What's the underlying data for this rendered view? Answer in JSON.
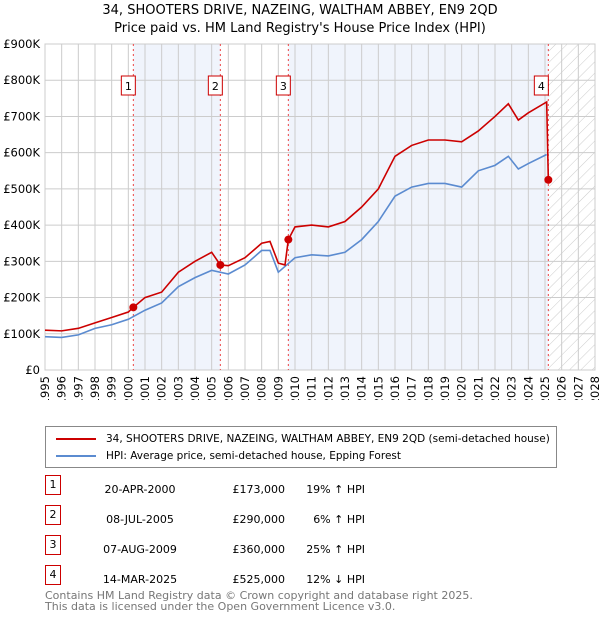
{
  "title": [
    "34, SHOOTERS DRIVE, NAZEING, WALTHAM ABBEY, EN9 2QD",
    "Price paid vs. HM Land Registry's House Price Index (HPI)"
  ],
  "chart_data": {
    "type": "line",
    "xlim": [
      1995,
      2028
    ],
    "ylim": [
      0,
      900000
    ],
    "yticks": [
      {
        "v": 0,
        "label": "£0"
      },
      {
        "v": 100000,
        "label": "£100K"
      },
      {
        "v": 200000,
        "label": "£200K"
      },
      {
        "v": 300000,
        "label": "£300K"
      },
      {
        "v": 400000,
        "label": "£400K"
      },
      {
        "v": 500000,
        "label": "£500K"
      },
      {
        "v": 600000,
        "label": "£600K"
      },
      {
        "v": 700000,
        "label": "£700K"
      },
      {
        "v": 800000,
        "label": "£800K"
      },
      {
        "v": 900000,
        "label": "£900K"
      }
    ],
    "xticks": [
      1995,
      1996,
      1997,
      1998,
      1999,
      2000,
      2001,
      2002,
      2003,
      2004,
      2005,
      2006,
      2007,
      2008,
      2009,
      2010,
      2011,
      2012,
      2013,
      2014,
      2015,
      2016,
      2017,
      2018,
      2019,
      2020,
      2021,
      2022,
      2023,
      2024,
      2025,
      2026,
      2027,
      2028
    ],
    "series": [
      {
        "name": "34, SHOOTERS DRIVE, NAZEING, WALTHAM ABBEY, EN9 2QD (semi-detached house)",
        "color": "#cc0000",
        "x": [
          1995,
          1996,
          1997,
          1998,
          1999,
          2000,
          2000.3,
          2001,
          2002,
          2003,
          2004,
          2005,
          2005.52,
          2006,
          2007,
          2008,
          2008.5,
          2009,
          2009.4,
          2009.6,
          2010,
          2011,
          2012,
          2013,
          2014,
          2015,
          2016,
          2017,
          2018,
          2019,
          2020,
          2021,
          2022,
          2022.8,
          2023.4,
          2024,
          2025.1,
          2025.2
        ],
        "y": [
          110000,
          108000,
          115000,
          130000,
          145000,
          160000,
          173000,
          200000,
          215000,
          270000,
          300000,
          325000,
          290000,
          288000,
          310000,
          350000,
          355000,
          295000,
          290000,
          360000,
          395000,
          400000,
          395000,
          410000,
          450000,
          500000,
          590000,
          620000,
          635000,
          635000,
          630000,
          660000,
          700000,
          735000,
          690000,
          710000,
          740000,
          525000
        ]
      },
      {
        "name": "HPI: Average price, semi-detached house, Epping Forest",
        "color": "#5b8bd0",
        "x": [
          1995,
          1996,
          1997,
          1998,
          1999,
          2000,
          2001,
          2002,
          2003,
          2004,
          2005,
          2006,
          2007,
          2008,
          2008.5,
          2009,
          2010,
          2011,
          2012,
          2013,
          2014,
          2015,
          2016,
          2017,
          2018,
          2019,
          2020,
          2021,
          2022,
          2022.8,
          2023.4,
          2024,
          2025.1
        ],
        "y": [
          92000,
          90000,
          97000,
          115000,
          125000,
          140000,
          165000,
          185000,
          230000,
          255000,
          275000,
          265000,
          290000,
          330000,
          330000,
          270000,
          310000,
          318000,
          315000,
          325000,
          360000,
          410000,
          480000,
          505000,
          515000,
          515000,
          505000,
          550000,
          565000,
          590000,
          555000,
          570000,
          595000
        ]
      }
    ],
    "sales": [
      {
        "id": "1",
        "x": 2000.3,
        "price": 173000,
        "date": "20-APR-2000",
        "price_label": "£173,000",
        "hpi": "19% ↑ HPI"
      },
      {
        "id": "2",
        "x": 2005.52,
        "price": 290000,
        "date": "08-JUL-2005",
        "price_label": "£290,000",
        "hpi": "6% ↑ HPI"
      },
      {
        "id": "3",
        "x": 2009.6,
        "price": 360000,
        "date": "07-AUG-2009",
        "price_label": "£360,000",
        "hpi": "25% ↑ HPI"
      },
      {
        "id": "4",
        "x": 2025.2,
        "price": 525000,
        "date": "14-MAR-2025",
        "price_label": "£525,000",
        "hpi": "12% ↓ HPI"
      }
    ]
  },
  "legend": [
    "34, SHOOTERS DRIVE, NAZEING, WALTHAM ABBEY, EN9 2QD (semi-detached house)",
    "HPI: Average price, semi-detached house, Epping Forest"
  ],
  "footer": [
    "Contains HM Land Registry data © Crown copyright and database right 2025.",
    "This data is licensed under the Open Government Licence v3.0."
  ]
}
